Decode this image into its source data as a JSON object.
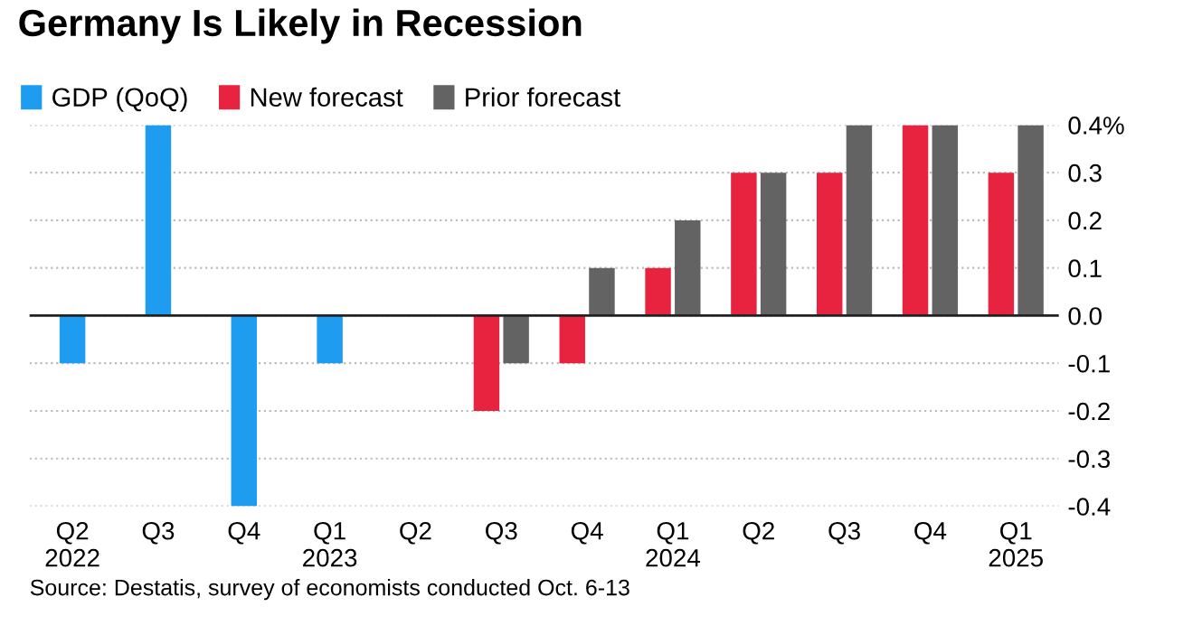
{
  "chart_data": {
    "type": "bar",
    "title": "Germany Is Likely in Recession",
    "categories": [
      "Q2\n2022",
      "Q3",
      "Q4",
      "Q1\n2023",
      "Q2",
      "Q3",
      "Q4",
      "Q1\n2024",
      "Q2",
      "Q3",
      "Q4",
      "Q1\n2025"
    ],
    "series": [
      {
        "name": "GDP (QoQ)",
        "color": "#1e9cf0",
        "values": [
          -0.1,
          0.4,
          -0.4,
          -0.1,
          0.0,
          null,
          null,
          null,
          null,
          null,
          null,
          null
        ]
      },
      {
        "name": "New forecast",
        "color": "#e8233f",
        "values": [
          null,
          null,
          null,
          null,
          null,
          -0.2,
          -0.1,
          0.1,
          0.3,
          0.3,
          0.4,
          0.3
        ]
      },
      {
        "name": "Prior forecast",
        "color": "#636363",
        "values": [
          null,
          null,
          null,
          null,
          null,
          -0.1,
          0.1,
          0.2,
          0.3,
          0.4,
          0.4,
          0.4
        ]
      }
    ],
    "ylim": [
      -0.4,
      0.4
    ],
    "yticks": [
      {
        "value": 0.4,
        "label": "0.4%"
      },
      0.3,
      0.2,
      0.1,
      {
        "value": 0,
        "label": "0.0"
      },
      -0.1,
      -0.2,
      -0.3,
      -0.4
    ],
    "grid": "y",
    "legend": "top left",
    "annotations": [
      "Source: Destatis, survey of economists conducted Oct. 6-13"
    ]
  }
}
